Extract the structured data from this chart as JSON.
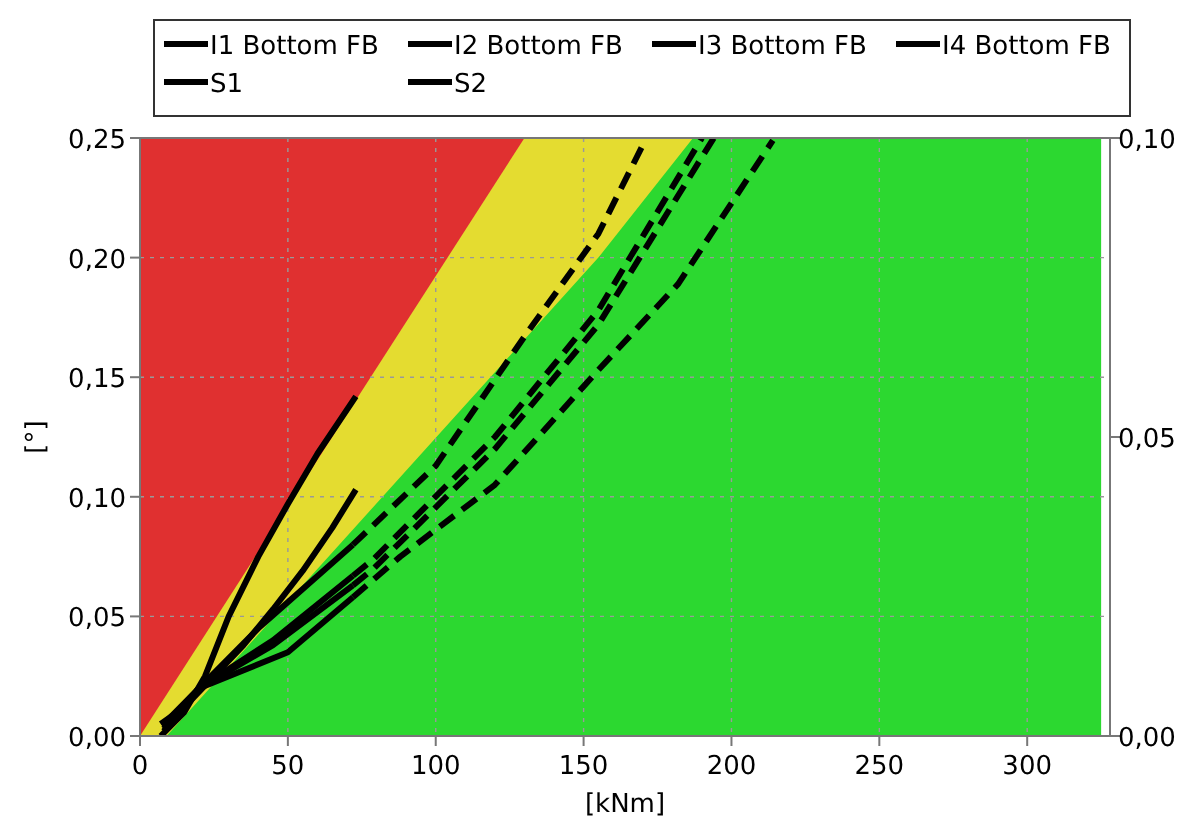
{
  "chart_data": {
    "type": "line",
    "xlabel": "[kNm]",
    "ylabel": "[°]",
    "xlim": [
      0,
      328
    ],
    "ylim": [
      0,
      0.25
    ],
    "y2lim": [
      0,
      0.1
    ],
    "xticks": [
      0,
      50,
      100,
      150,
      200,
      250,
      300
    ],
    "yticks": [
      {
        "value": 0,
        "label": "0,00"
      },
      {
        "value": 0.05,
        "label": "0,05"
      },
      {
        "value": 0.1,
        "label": "0,10"
      },
      {
        "value": 0.15,
        "label": "0,15"
      },
      {
        "value": 0.2,
        "label": "0,20"
      },
      {
        "value": 0.25,
        "label": "0,25"
      }
    ],
    "y2ticks": [
      {
        "value": 0,
        "label": "0,00"
      },
      {
        "value": 0.05,
        "label": "0,05"
      },
      {
        "value": 0.1,
        "label": "0,10"
      }
    ],
    "grid": true,
    "legend": "top",
    "marker": "none",
    "series": [
      {
        "type": "area",
        "color": "#e03030",
        "x": [
          0,
          130
        ],
        "values": [
          0.25,
          0.25
        ]
      },
      {
        "type": "area",
        "color": "#e4dc30",
        "x": [
          0,
          130,
          187
        ],
        "values": [
          0,
          0.25,
          0.25
        ]
      },
      {
        "type": "area",
        "color": "#2cd830",
        "x": [
          9,
          155,
          187,
          325
        ],
        "values": [
          0,
          0.2,
          0.25,
          0.25
        ]
      },
      {
        "name": "I1 Bottom FB",
        "color": "#000000",
        "line_style": "solid",
        "x": [
          8,
          20,
          40,
          72
        ],
        "values": [
          0.005,
          0.02,
          0.045,
          0.08
        ]
      },
      {
        "name": "I2 Bottom FB",
        "color": "#000000",
        "line_style": "solid",
        "x": [
          8,
          20,
          45,
          72
        ],
        "values": [
          0.004,
          0.02,
          0.04,
          0.067
        ]
      },
      {
        "name": "I3 Bottom FB",
        "color": "#000000",
        "line_style": "solid",
        "x": [
          8,
          20,
          45,
          72
        ],
        "values": [
          0.003,
          0.02,
          0.038,
          0.063
        ]
      },
      {
        "name": "I4 Bottom FB",
        "color": "#000000",
        "line_style": "solid",
        "x": [
          8,
          20,
          50,
          72
        ],
        "values": [
          0.002,
          0.02,
          0.035,
          0.058
        ]
      },
      {
        "color": "#000000",
        "line_style": "dashed",
        "x": [
          72,
          100,
          130,
          155,
          170
        ],
        "values": [
          0.08,
          0.113,
          0.167,
          0.21,
          0.247
        ]
      },
      {
        "color": "#000000",
        "line_style": "dashed",
        "x": [
          72,
          79,
          120,
          155,
          190
        ],
        "values": [
          0.067,
          0.074,
          0.125,
          0.178,
          0.25
        ]
      },
      {
        "color": "#000000",
        "line_style": "dashed",
        "x": [
          72,
          79,
          120,
          155,
          194
        ],
        "values": [
          0.063,
          0.07,
          0.12,
          0.172,
          0.25
        ]
      },
      {
        "color": "#000000",
        "line_style": "dashed",
        "x": [
          72,
          88,
          120,
          155,
          182,
          214
        ],
        "values": [
          0.058,
          0.075,
          0.105,
          0.153,
          0.189,
          0.249
        ]
      },
      {
        "name": "S1",
        "color": "#000000",
        "line_style": "solid",
        "x": [
          7,
          15,
          22,
          30,
          40,
          50,
          60,
          73
        ],
        "values": [
          0,
          0.01,
          0.025,
          0.05,
          0.075,
          0.097,
          0.118,
          0.142
        ]
      },
      {
        "name": "S2",
        "color": "#000000",
        "line_style": "solid",
        "x": [
          7,
          15,
          25,
          35,
          45,
          55,
          65,
          73
        ],
        "values": [
          0.005,
          0.012,
          0.025,
          0.038,
          0.053,
          0.069,
          0.087,
          0.103
        ]
      }
    ]
  }
}
